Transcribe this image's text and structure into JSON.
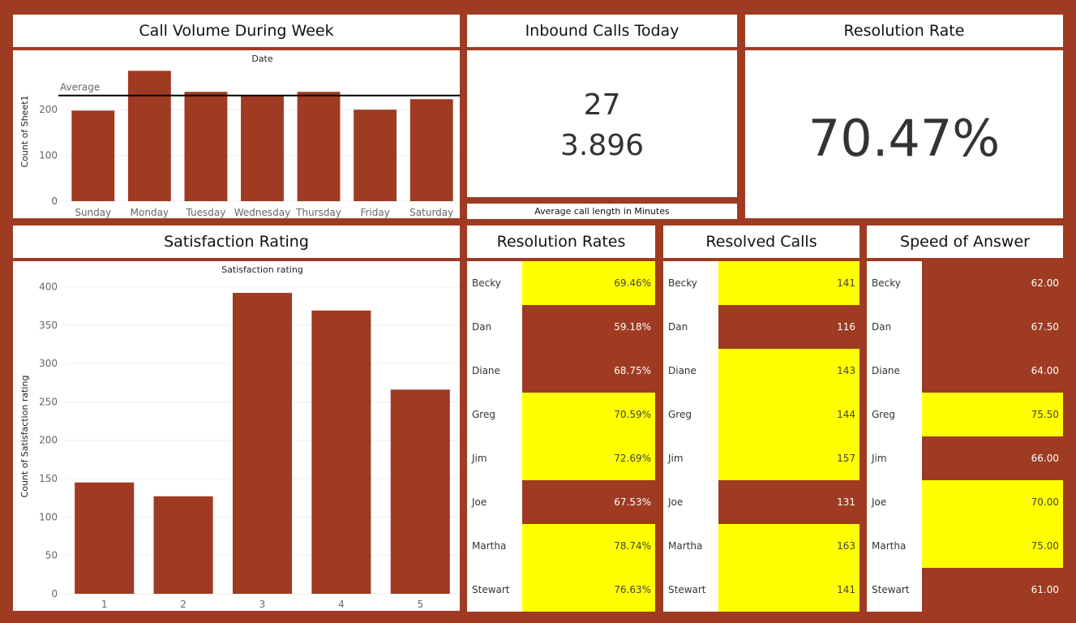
{
  "colors": {
    "frame": "#9e3b22",
    "bar": "#9e3b22",
    "highlight": "#ffff00",
    "low": "#9e3b22"
  },
  "call_volume": {
    "title": "Call Volume During Week",
    "xheader": "Date",
    "ylabel": "Count of Sheet1",
    "ref_label": "Average"
  },
  "inbound": {
    "title": "Inbound Calls Today",
    "calls": "27",
    "avg_length": "3.896",
    "caption": "Average call length in Minutes"
  },
  "resolution": {
    "title": "Resolution Rate",
    "value": "70.47%"
  },
  "satisfaction": {
    "title": "Satisfaction Rating",
    "xheader": "Satisfaction rating",
    "ylabel": "Count of Satisfaction rating"
  },
  "tables": {
    "rates_title": "Resolution Rates",
    "resolved_title": "Resolved Calls",
    "speed_title": "Speed of Answer",
    "rows": [
      {
        "name": "Becky",
        "rate": "69.46%",
        "rate_hi": true,
        "resolved": "141",
        "res_hi": true,
        "speed": "62.00",
        "speed_hi": false
      },
      {
        "name": "Dan",
        "rate": "59.18%",
        "rate_hi": false,
        "resolved": "116",
        "res_hi": false,
        "speed": "67.50",
        "speed_hi": false
      },
      {
        "name": "Diane",
        "rate": "68.75%",
        "rate_hi": false,
        "resolved": "143",
        "res_hi": true,
        "speed": "64.00",
        "speed_hi": false
      },
      {
        "name": "Greg",
        "rate": "70.59%",
        "rate_hi": true,
        "resolved": "144",
        "res_hi": true,
        "speed": "75.50",
        "speed_hi": true
      },
      {
        "name": "Jim",
        "rate": "72.69%",
        "rate_hi": true,
        "resolved": "157",
        "res_hi": true,
        "speed": "66.00",
        "speed_hi": false
      },
      {
        "name": "Joe",
        "rate": "67.53%",
        "rate_hi": false,
        "resolved": "131",
        "res_hi": false,
        "speed": "70.00",
        "speed_hi": true
      },
      {
        "name": "Martha",
        "rate": "78.74%",
        "rate_hi": true,
        "resolved": "163",
        "res_hi": true,
        "speed": "75.00",
        "speed_hi": true
      },
      {
        "name": "Stewart",
        "rate": "76.63%",
        "rate_hi": true,
        "resolved": "141",
        "res_hi": true,
        "speed": "61.00",
        "speed_hi": false
      }
    ]
  },
  "chart_data": [
    {
      "type": "bar",
      "title": "Call Volume During Week",
      "xlabel": "Date",
      "ylabel": "Count of Sheet1",
      "categories": [
        "Sunday",
        "Monday",
        "Tuesday",
        "Wednesday",
        "Thursday",
        "Friday",
        "Saturday"
      ],
      "values": [
        198,
        285,
        239,
        232,
        239,
        200,
        223
      ],
      "reference_line": {
        "label": "Average",
        "value": 231
      },
      "yticks": [
        0,
        100,
        200
      ],
      "ylim": [
        0,
        305
      ],
      "grid": true
    },
    {
      "type": "bar",
      "title": "Satisfaction Rating",
      "xlabel": "Satisfaction rating",
      "ylabel": "Count of Satisfaction rating",
      "categories": [
        "1",
        "2",
        "3",
        "4",
        "5"
      ],
      "values": [
        145,
        127,
        392,
        369,
        266
      ],
      "yticks": [
        0,
        50,
        100,
        150,
        200,
        250,
        300,
        350,
        400
      ],
      "ylim": [
        0,
        410
      ],
      "grid": true
    }
  ]
}
